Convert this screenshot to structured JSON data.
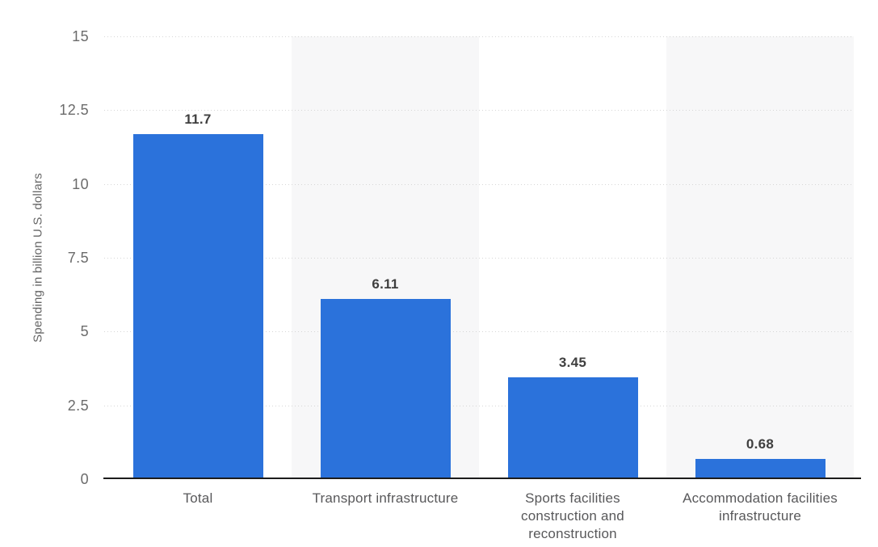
{
  "chart_data": {
    "type": "bar",
    "title": "",
    "xlabel": "",
    "ylabel": "Spending in billion U.S. dollars",
    "categories": [
      "Total",
      "Transport infrastructure",
      "Sports facilities\nconstruction and\nreconstruction",
      "Accommodation facilities\ninfrastructure"
    ],
    "values": [
      11.7,
      6.11,
      3.45,
      0.68
    ],
    "value_labels": [
      "11.7",
      "6.11",
      "3.45",
      "0.68"
    ],
    "ylim": [
      0,
      15
    ],
    "yticks": [
      0,
      2.5,
      5,
      7.5,
      10,
      12.5,
      15
    ],
    "ytick_labels": [
      "0",
      "2.5",
      "5",
      "7.5",
      "10",
      "12.5",
      "15"
    ],
    "legend": "none",
    "grid": "horizontal-dotted",
    "colors": {
      "bar": "#2b72db",
      "band_alt": "#f7f7f8",
      "gridline": "#d6d6d6",
      "axis_line": "#1c1c1c",
      "tick_label": "#6b6b6b",
      "category_label": "#58585a",
      "value_label": "#3f3f3f",
      "y_title": "#666666",
      "background": "#ffffff"
    }
  }
}
